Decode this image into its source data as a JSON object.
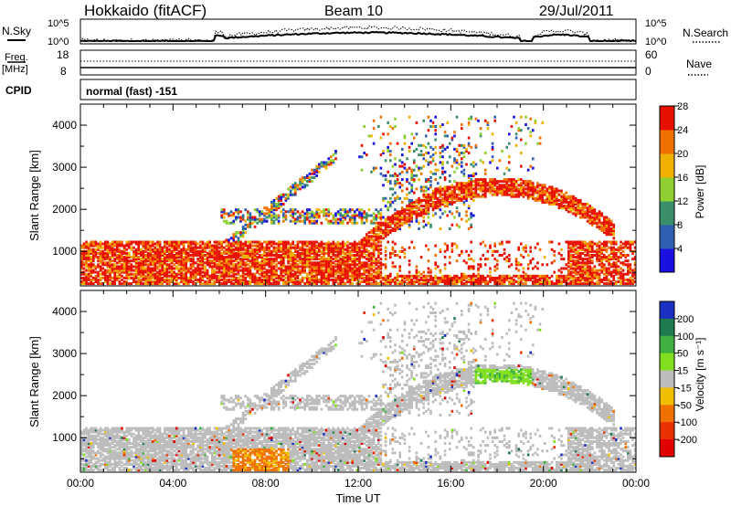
{
  "header": {
    "title": "Hokkaido (fitACF)",
    "beam": "Beam 10",
    "date": "29/Jul/2011"
  },
  "top_panels": {
    "nsky_label": "N.Sky",
    "nsky_ticks": [
      "10^5",
      "10^0"
    ],
    "nsearch_label": "N.Search",
    "nsearch_ticks": [
      "10^5",
      "10^0"
    ],
    "freq_label": "Freq.",
    "freq_unit": "[MHz]",
    "freq_ticks": [
      "18",
      "8"
    ],
    "nave_label": "Nave",
    "nave_ticks": [
      "60",
      "0"
    ],
    "cpid_label": "CPID",
    "cpid_value": "normal (fast) -151"
  },
  "chart_data": [
    {
      "type": "heatmap",
      "name": "power",
      "ylabel": "Slant Range [km]",
      "xlabel": "Time UT",
      "ylim": [
        180,
        4500
      ],
      "yticks": [
        "1000",
        "2000",
        "3000",
        "4000"
      ],
      "xticks": [
        "00:00",
        "04:00",
        "08:00",
        "12:00",
        "16:00",
        "20:00",
        "00:00"
      ],
      "colorbar": {
        "label": "Power [dB]",
        "ticks": [
          "4",
          "8",
          "12",
          "16",
          "20",
          "24",
          "28"
        ],
        "colors": [
          "#1a10e0",
          "#2f5fb0",
          "#3a8f6a",
          "#8fd030",
          "#f0b000",
          "#f07000",
          "#e81000"
        ]
      }
    },
    {
      "type": "heatmap",
      "name": "velocity",
      "ylabel": "Slant Range [km]",
      "xlabel": "Time UT",
      "ylim": [
        180,
        4500
      ],
      "yticks": [
        "1000",
        "2000",
        "3000",
        "4000"
      ],
      "xticks": [
        "00:00",
        "04:00",
        "08:00",
        "12:00",
        "16:00",
        "20:00",
        "00:00"
      ],
      "colorbar": {
        "label": "Velocity [m s⁻¹]",
        "ticks": [
          "200",
          "100",
          "50",
          "15",
          "-15",
          "-50",
          "-100",
          "-200"
        ],
        "colors": [
          "#1a30c0",
          "#207a50",
          "#40b040",
          "#80e020",
          "#bcbcbc",
          "#f0c000",
          "#f07000",
          "#e83000",
          "#e00000"
        ]
      }
    }
  ]
}
